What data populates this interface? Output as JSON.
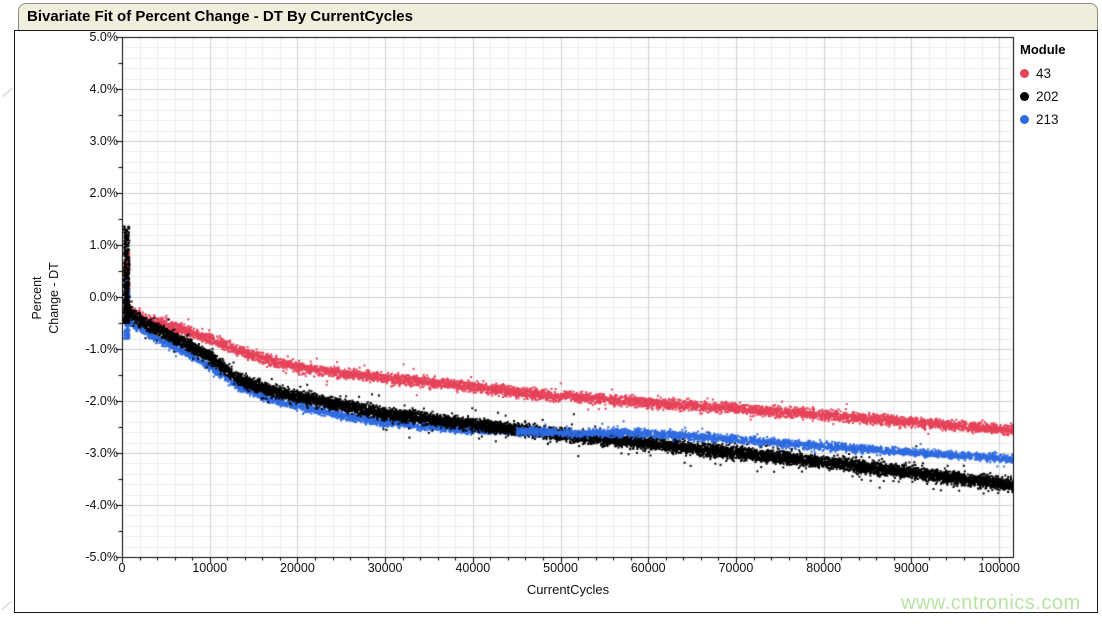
{
  "watermark": "www.cntronics.com",
  "chart_data": {
    "type": "scatter",
    "title": "Bivariate Fit of Percent Change - DT By CurrentCycles",
    "xlabel": "CurrentCycles",
    "ylabel": "Percent Change - DT",
    "ylabel_lines": [
      "Percent",
      "Change - DT"
    ],
    "xlim": [
      0,
      101700
    ],
    "ylim": [
      -5,
      5
    ],
    "x_major_ticks": [
      0,
      10000,
      20000,
      30000,
      40000,
      50000,
      60000,
      70000,
      80000,
      90000,
      100000
    ],
    "x_minor_step": 2000,
    "y_major_ticks": [
      5,
      4,
      3,
      2,
      1,
      0,
      -1,
      -2,
      -3,
      -4,
      -5
    ],
    "y_tick_labels": [
      "5.0%",
      "4.0%",
      "3.0%",
      "2.0%",
      "1.0%",
      "0.0%",
      "-1.0%",
      "-2.0%",
      "-3.0%",
      "-4.0%",
      "-5.0%"
    ],
    "y_minor_tick_step": 0.5,
    "grid": {
      "on": true,
      "major_color": "#d0d0d0",
      "minor_color": "#ececec",
      "h_minor_step": 0.2,
      "v_minor_step": 2000
    },
    "frame_color": "#000000",
    "legend": {
      "title": "Module",
      "position": "right",
      "entries": [
        {
          "label": "43",
          "color": "#e6435a"
        },
        {
          "label": "202",
          "color": "#000000"
        },
        {
          "label": "213",
          "color": "#2f6be0"
        }
      ]
    },
    "series": [
      {
        "name": "43",
        "color": "#e6435a",
        "points": 6500,
        "band": 0.17,
        "outlier_frac": 0.02,
        "outlier_mult": 2.6,
        "trend": [
          [
            250,
            -0.12
          ],
          [
            1000,
            -0.28
          ],
          [
            2000,
            -0.38
          ],
          [
            4000,
            -0.5
          ],
          [
            7000,
            -0.63
          ],
          [
            10000,
            -0.8
          ],
          [
            13500,
            -1.05
          ],
          [
            17000,
            -1.22
          ],
          [
            20000,
            -1.35
          ],
          [
            25000,
            -1.47
          ],
          [
            30000,
            -1.56
          ],
          [
            38500,
            -1.7
          ],
          [
            48000,
            -1.88
          ],
          [
            60000,
            -2.03
          ],
          [
            70000,
            -2.15
          ],
          [
            80000,
            -2.27
          ],
          [
            91000,
            -2.42
          ],
          [
            101700,
            -2.57
          ]
        ],
        "spike": {
          "x": [
            250,
            850
          ],
          "y": [
            -0.5,
            0.92
          ],
          "points": 260
        }
      },
      {
        "name": "213",
        "color": "#2f6be0",
        "points": 5200,
        "band": 0.13,
        "outlier_frac": 0.02,
        "outlier_mult": 2.2,
        "overlay_from_x": 45000,
        "trend": [
          [
            300,
            -0.35
          ],
          [
            1000,
            -0.5
          ],
          [
            2000,
            -0.62
          ],
          [
            4000,
            -0.8
          ],
          [
            7000,
            -1.05
          ],
          [
            10000,
            -1.35
          ],
          [
            13500,
            -1.75
          ],
          [
            17000,
            -1.98
          ],
          [
            20000,
            -2.1
          ],
          [
            25000,
            -2.28
          ],
          [
            30000,
            -2.42
          ],
          [
            38500,
            -2.55
          ],
          [
            45000,
            -2.58
          ],
          [
            52000,
            -2.62
          ],
          [
            58000,
            -2.6
          ],
          [
            65000,
            -2.68
          ],
          [
            70000,
            -2.74
          ],
          [
            80000,
            -2.87
          ],
          [
            91000,
            -3.0
          ],
          [
            101700,
            -3.12
          ]
        ],
        "spike": {
          "x": [
            280,
            850
          ],
          "y": [
            -0.8,
            0.4
          ],
          "points": 200
        }
      },
      {
        "name": "202",
        "color": "#000000",
        "points": 10000,
        "band": 0.2,
        "outlier_frac": 0.035,
        "outlier_mult": 2.8,
        "trend": [
          [
            250,
            -0.1
          ],
          [
            1000,
            -0.3
          ],
          [
            2000,
            -0.45
          ],
          [
            4000,
            -0.62
          ],
          [
            7000,
            -0.88
          ],
          [
            10000,
            -1.15
          ],
          [
            13500,
            -1.6
          ],
          [
            17000,
            -1.8
          ],
          [
            20000,
            -1.92
          ],
          [
            25000,
            -2.08
          ],
          [
            30000,
            -2.25
          ],
          [
            38500,
            -2.42
          ],
          [
            45000,
            -2.55
          ],
          [
            50000,
            -2.65
          ],
          [
            60000,
            -2.82
          ],
          [
            70000,
            -3.0
          ],
          [
            80000,
            -3.17
          ],
          [
            91000,
            -3.4
          ],
          [
            101700,
            -3.62
          ]
        ],
        "spike": {
          "x": [
            230,
            850
          ],
          "y": [
            -0.5,
            1.36
          ],
          "points": 420
        }
      }
    ]
  }
}
